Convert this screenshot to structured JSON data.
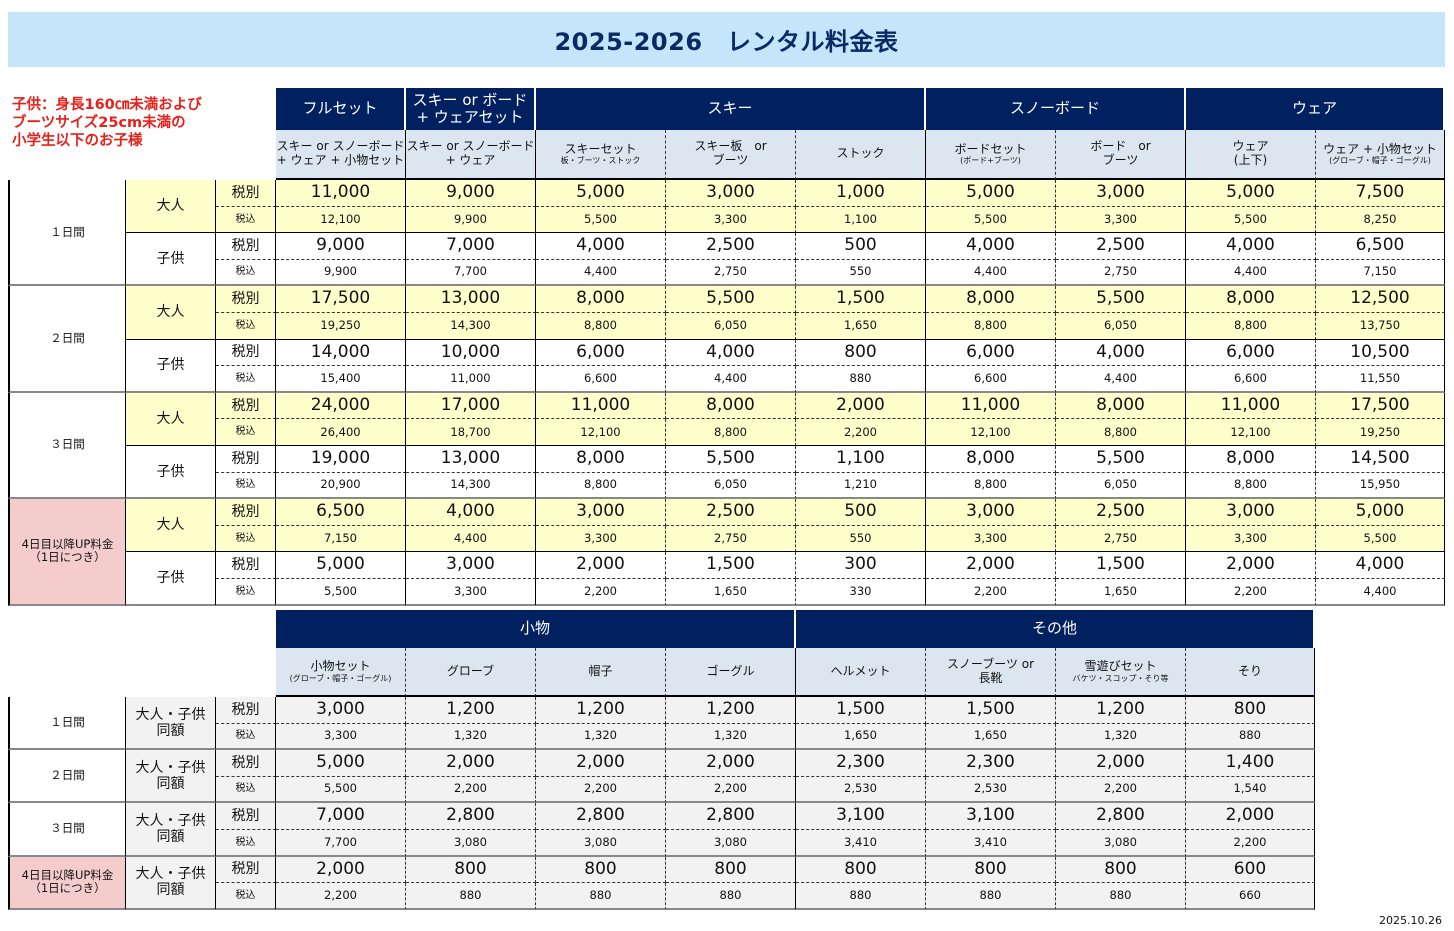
{
  "title": "2025-2026　レンタル料金表",
  "note": "子供：身長160㎝未満および\nブーツサイズ25cm未満の\n小学生以下のお子様",
  "date": "2025.10.26",
  "tax_ex": "税別",
  "tax_in": "税込",
  "colors": {
    "header": "#002060",
    "subheader": "#dce6f1",
    "adult": "#ffffcc",
    "extra": "#f4cccc",
    "note": "#e8201a"
  },
  "main": {
    "groups": [
      {
        "label": "フルセット",
        "span": 1
      },
      {
        "label": "スキー or ボード\n+ ウェアセット",
        "span": 1
      },
      {
        "label": "スキー",
        "span": 3
      },
      {
        "label": "スノーボード",
        "span": 2
      },
      {
        "label": "ウェア",
        "span": 2
      }
    ],
    "columns": [
      {
        "label": "スキー or スノーボード\n+ ウェア + 小物セット",
        "sub": ""
      },
      {
        "label": "スキー or スノーボード\n+ ウェア",
        "sub": ""
      },
      {
        "label": "スキーセット",
        "sub": "板・ブーツ・ストック"
      },
      {
        "label": "スキー板　or\nブーツ",
        "sub": ""
      },
      {
        "label": "ストック",
        "sub": ""
      },
      {
        "label": "ボードセット",
        "sub": "(ボード+ブーツ)"
      },
      {
        "label": "ボード　or\nブーツ",
        "sub": ""
      },
      {
        "label": "ウェア\n(上下)",
        "sub": ""
      },
      {
        "label": "ウェア + 小物セット",
        "sub": "(グローブ・帽子・ゴーグル)"
      }
    ],
    "periods": [
      {
        "label": "１日間",
        "rows": [
          {
            "who": "大人",
            "ex": [
              "11,000",
              "9,000",
              "5,000",
              "3,000",
              "1,000",
              "5,000",
              "3,000",
              "5,000",
              "7,500"
            ],
            "inc": [
              "12,100",
              "9,900",
              "5,500",
              "3,300",
              "1,100",
              "5,500",
              "3,300",
              "5,500",
              "8,250"
            ]
          },
          {
            "who": "子供",
            "ex": [
              "9,000",
              "7,000",
              "4,000",
              "2,500",
              "500",
              "4,000",
              "2,500",
              "4,000",
              "6,500"
            ],
            "inc": [
              "9,900",
              "7,700",
              "4,400",
              "2,750",
              "550",
              "4,400",
              "2,750",
              "4,400",
              "7,150"
            ]
          }
        ]
      },
      {
        "label": "２日間",
        "rows": [
          {
            "who": "大人",
            "ex": [
              "17,500",
              "13,000",
              "8,000",
              "5,500",
              "1,500",
              "8,000",
              "5,500",
              "8,000",
              "12,500"
            ],
            "inc": [
              "19,250",
              "14,300",
              "8,800",
              "6,050",
              "1,650",
              "8,800",
              "6,050",
              "8,800",
              "13,750"
            ]
          },
          {
            "who": "子供",
            "ex": [
              "14,000",
              "10,000",
              "6,000",
              "4,000",
              "800",
              "6,000",
              "4,000",
              "6,000",
              "10,500"
            ],
            "inc": [
              "15,400",
              "11,000",
              "6,600",
              "4,400",
              "880",
              "6,600",
              "4,400",
              "6,600",
              "11,550"
            ]
          }
        ]
      },
      {
        "label": "３日間",
        "rows": [
          {
            "who": "大人",
            "ex": [
              "24,000",
              "17,000",
              "11,000",
              "8,000",
              "2,000",
              "11,000",
              "8,000",
              "11,000",
              "17,500"
            ],
            "inc": [
              "26,400",
              "18,700",
              "12,100",
              "8,800",
              "2,200",
              "12,100",
              "8,800",
              "12,100",
              "19,250"
            ]
          },
          {
            "who": "子供",
            "ex": [
              "19,000",
              "13,000",
              "8,000",
              "5,500",
              "1,100",
              "8,000",
              "5,500",
              "8,000",
              "14,500"
            ],
            "inc": [
              "20,900",
              "14,300",
              "8,800",
              "6,050",
              "1,210",
              "8,800",
              "6,050",
              "8,800",
              "15,950"
            ]
          }
        ]
      },
      {
        "label": "4日目以降UP料金\n（1日につき）",
        "extra": true,
        "rows": [
          {
            "who": "大人",
            "ex": [
              "6,500",
              "4,000",
              "3,000",
              "2,500",
              "500",
              "3,000",
              "2,500",
              "3,000",
              "5,000"
            ],
            "inc": [
              "7,150",
              "4,400",
              "3,300",
              "2,750",
              "550",
              "3,300",
              "2,750",
              "3,300",
              "5,500"
            ]
          },
          {
            "who": "子供",
            "ex": [
              "5,000",
              "3,000",
              "2,000",
              "1,500",
              "300",
              "2,000",
              "1,500",
              "2,000",
              "4,000"
            ],
            "inc": [
              "5,500",
              "3,300",
              "2,200",
              "1,650",
              "330",
              "2,200",
              "1,650",
              "2,200",
              "4,400"
            ]
          }
        ]
      }
    ]
  },
  "accessories": {
    "groups": [
      {
        "label": "小物",
        "span": 4
      },
      {
        "label": "その他",
        "span": 4
      }
    ],
    "columns": [
      {
        "label": "小物セット",
        "sub": "(グローブ・帽子・ゴーグル)"
      },
      {
        "label": "グローブ",
        "sub": ""
      },
      {
        "label": "帽子",
        "sub": ""
      },
      {
        "label": "ゴーグル",
        "sub": ""
      },
      {
        "label": "ヘルメット",
        "sub": ""
      },
      {
        "label": "スノーブーツ or\n長靴",
        "sub": ""
      },
      {
        "label": "雪遊びセット",
        "sub": "バケツ・スコップ・そり等"
      },
      {
        "label": "そり",
        "sub": ""
      }
    ],
    "who": "大人・子供\n同額",
    "periods": [
      {
        "label": "１日間",
        "ex": [
          "3,000",
          "1,200",
          "1,200",
          "1,200",
          "1,500",
          "1,500",
          "1,200",
          "800"
        ],
        "inc": [
          "3,300",
          "1,320",
          "1,320",
          "1,320",
          "1,650",
          "1,650",
          "1,320",
          "880"
        ]
      },
      {
        "label": "２日間",
        "ex": [
          "5,000",
          "2,000",
          "2,000",
          "2,000",
          "2,300",
          "2,300",
          "2,000",
          "1,400"
        ],
        "inc": [
          "5,500",
          "2,200",
          "2,200",
          "2,200",
          "2,530",
          "2,530",
          "2,200",
          "1,540"
        ]
      },
      {
        "label": "３日間",
        "ex": [
          "7,000",
          "2,800",
          "2,800",
          "2,800",
          "3,100",
          "3,100",
          "2,800",
          "2,000"
        ],
        "inc": [
          "7,700",
          "3,080",
          "3,080",
          "3,080",
          "3,410",
          "3,410",
          "3,080",
          "2,200"
        ]
      },
      {
        "label": "4日目以降UP料金\n（1日につき）",
        "extra": true,
        "ex": [
          "2,000",
          "800",
          "800",
          "800",
          "800",
          "800",
          "800",
          "600"
        ],
        "inc": [
          "2,200",
          "880",
          "880",
          "880",
          "880",
          "880",
          "880",
          "660"
        ]
      }
    ]
  }
}
